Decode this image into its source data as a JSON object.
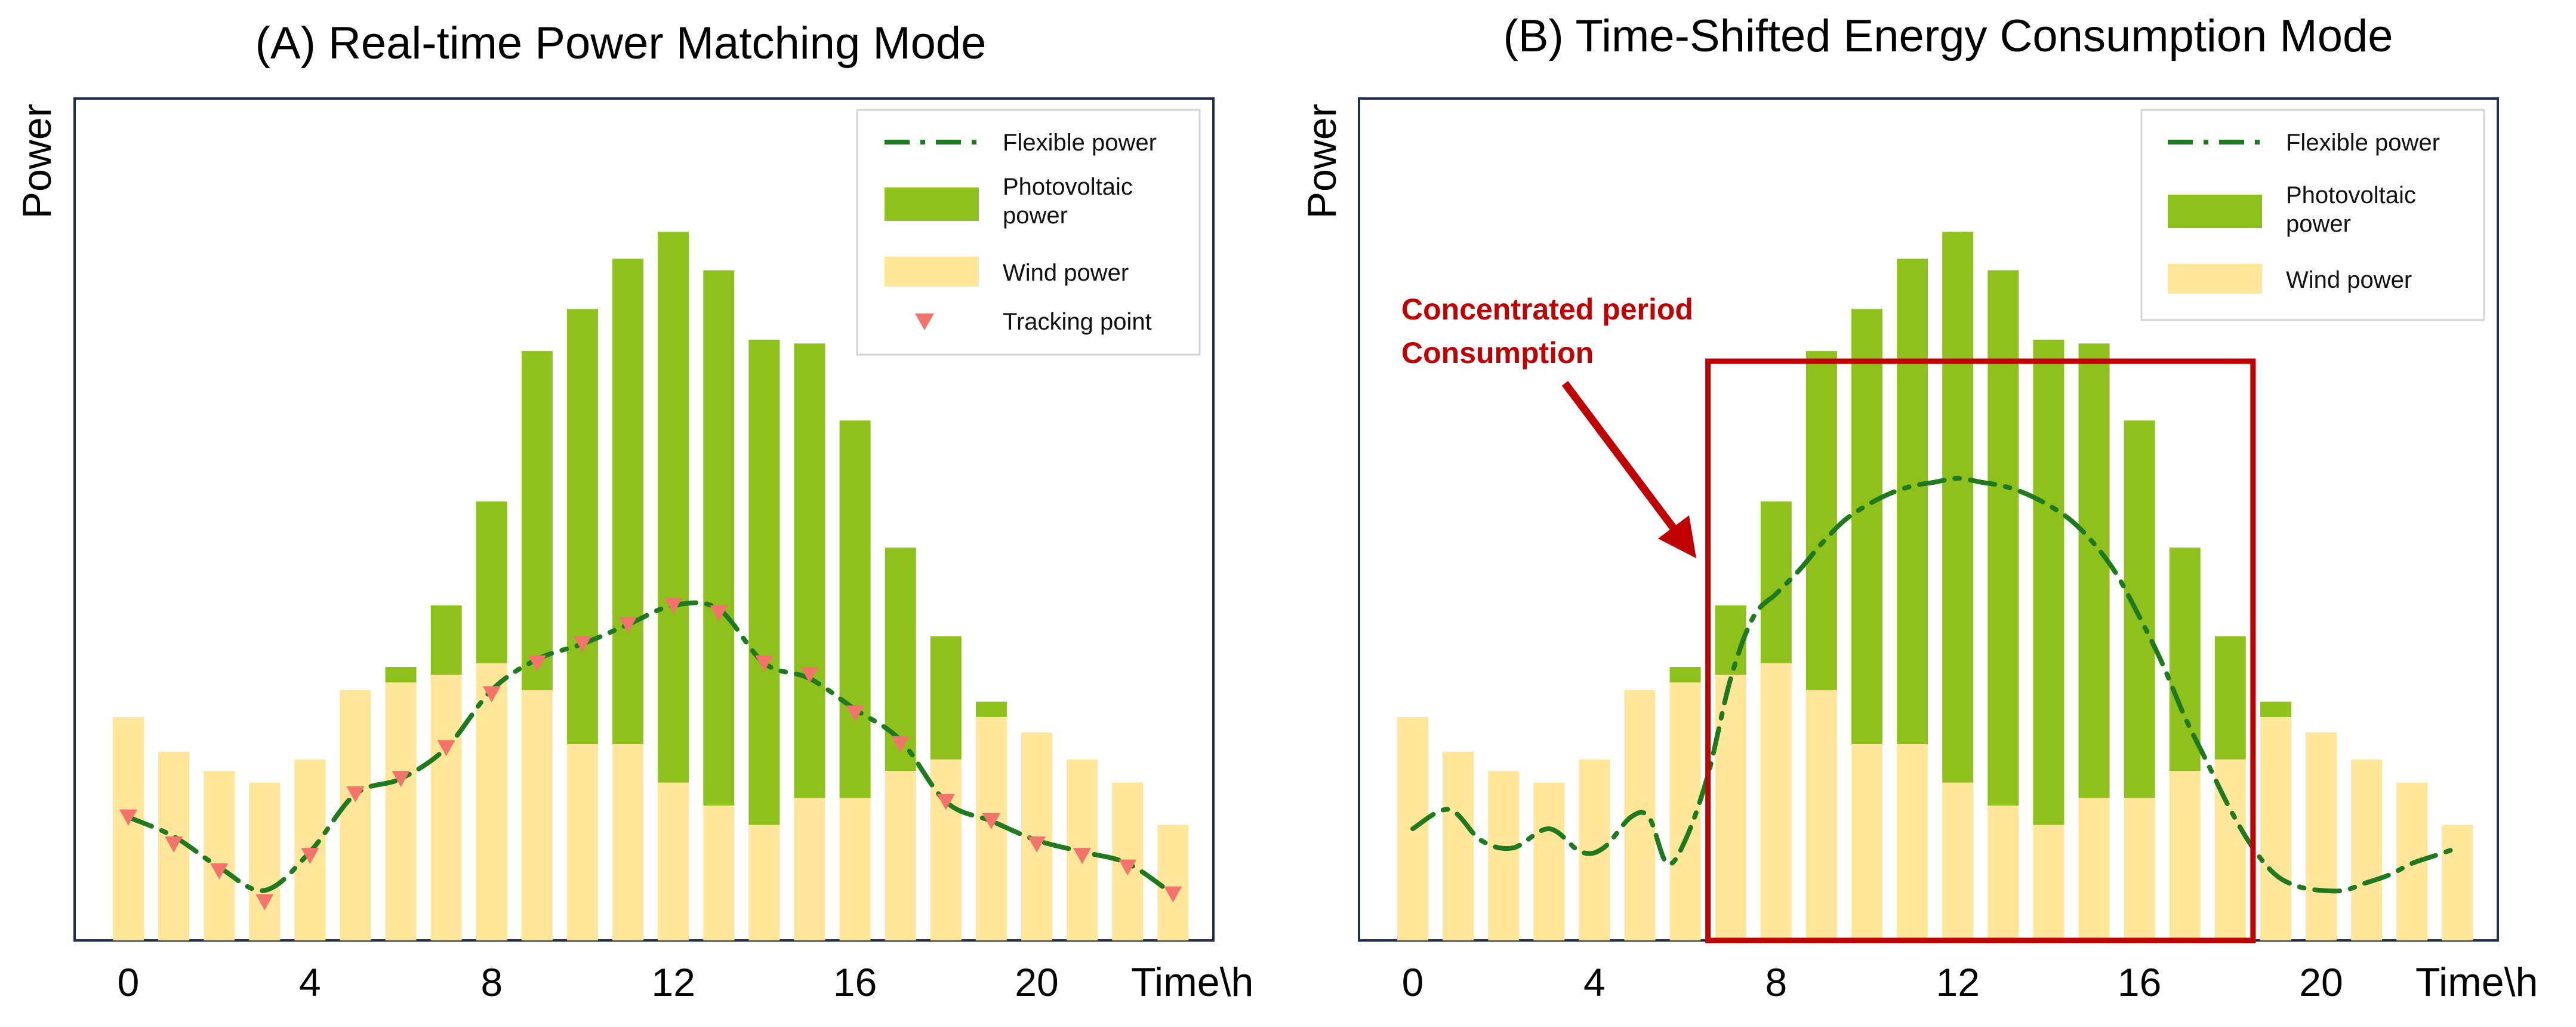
{
  "chart_data": [
    {
      "type": "bar",
      "title": "(A) Real-time Power Matching Mode",
      "xlabel": "Time\\h",
      "ylabel": "Power",
      "x_ticks": [
        "0",
        "4",
        "8",
        "12",
        "16",
        "20"
      ],
      "hours": [
        0,
        1,
        2,
        3,
        4,
        5,
        6,
        7,
        8,
        9,
        10,
        11,
        12,
        13,
        14,
        15,
        16,
        17,
        18,
        19,
        20,
        21,
        22,
        23
      ],
      "ylim": [
        0,
        100
      ],
      "stacked": true,
      "series": [
        {
          "name": "Wind power",
          "kind": "bar",
          "color": "#ffe699",
          "values": [
            29,
            24.5,
            22,
            20.5,
            23.5,
            32.5,
            33.5,
            34.5,
            36,
            32.5,
            25.5,
            25.5,
            20.5,
            17.5,
            15,
            18.5,
            18.5,
            22,
            23.5,
            29,
            27,
            23.5,
            20.5,
            15
          ]
        },
        {
          "name": "Photovoltaic power",
          "kind": "bar",
          "color": "#8fc11c",
          "values": [
            0,
            0,
            0,
            0,
            0,
            0,
            2,
            9,
            21,
            44,
            56.5,
            63,
            71.5,
            69.5,
            63,
            59,
            49,
            29,
            16,
            2,
            0,
            0,
            0,
            0
          ]
        },
        {
          "name": "Flexible power",
          "kind": "line",
          "color": "#1f7a1f",
          "dash": "dash-dot",
          "values": [
            16,
            13.5,
            9.5,
            6.5,
            11.5,
            19,
            21,
            25,
            32.5,
            36.5,
            38.5,
            41,
            43.5,
            43,
            36,
            34,
            30,
            26,
            18,
            15.5,
            13,
            11.5,
            10,
            6
          ]
        },
        {
          "name": "Tracking point",
          "kind": "marker",
          "color": "#f4736b",
          "values": [
            16,
            12.5,
            9,
            5,
            11,
            19,
            21,
            25,
            32,
            36,
            38.5,
            41,
            43.5,
            42.5,
            36,
            34.5,
            29.5,
            25.5,
            18,
            15.5,
            12.5,
            11,
            9.5,
            6
          ]
        }
      ],
      "legend": {
        "position": "top-right",
        "entries": [
          "Flexible power",
          "Photovoltaic power",
          "Wind power",
          "Tracking point"
        ]
      }
    },
    {
      "type": "bar",
      "title": "(B) Time-Shifted Energy Consumption Mode",
      "xlabel": "Time\\h",
      "ylabel": "Power",
      "x_ticks": [
        "0",
        "4",
        "8",
        "12",
        "16",
        "20"
      ],
      "hours": [
        0,
        1,
        2,
        3,
        4,
        5,
        6,
        7,
        8,
        9,
        10,
        11,
        12,
        13,
        14,
        15,
        16,
        17,
        18,
        19,
        20,
        21,
        22,
        23
      ],
      "ylim": [
        0,
        100
      ],
      "stacked": true,
      "series": [
        {
          "name": "Wind power",
          "kind": "bar",
          "color": "#ffe699",
          "values": [
            29,
            24.5,
            22,
            20.5,
            23.5,
            32.5,
            33.5,
            34.5,
            36,
            32.5,
            25.5,
            25.5,
            20.5,
            17.5,
            15,
            18.5,
            18.5,
            22,
            23.5,
            29,
            27,
            23.5,
            20.5,
            15
          ]
        },
        {
          "name": "Photovoltaic power",
          "kind": "bar",
          "color": "#8fc11c",
          "values": [
            0,
            0,
            0,
            0,
            0,
            0,
            2,
            9,
            21,
            44,
            56.5,
            63,
            71.5,
            69.5,
            63,
            59,
            49,
            29,
            16,
            2,
            0,
            0,
            0,
            0
          ]
        },
        {
          "name": "Flexible power",
          "kind": "line",
          "color": "#1f7a1f",
          "dash": "dash-dot",
          "x": [
            0,
            0.8,
            1.5,
            2.2,
            3,
            3.7,
            4.2,
            4.8,
            5.2,
            5.6,
            6,
            6.5,
            7,
            7.5,
            8,
            8.5,
            9,
            9.5,
            10,
            10.5,
            11,
            11.5,
            12,
            12.5,
            13,
            13.5,
            14,
            14.5,
            15,
            15.5,
            16,
            16.5,
            17,
            17.5,
            18,
            18.5,
            19,
            19.5,
            20,
            20.5,
            21,
            21.5,
            22,
            22.5,
            23
          ],
          "values": [
            14.5,
            17,
            13,
            12,
            14.5,
            11.5,
            12,
            16,
            16,
            10,
            13,
            21.5,
            34,
            42,
            45,
            48,
            51.5,
            54.5,
            56.5,
            58,
            59,
            59.5,
            60,
            59.5,
            59,
            58,
            56.5,
            54.5,
            51.5,
            47.5,
            42,
            36,
            29,
            23,
            17,
            12,
            8.5,
            7,
            6.5,
            6.5,
            7.5,
            8.5,
            10,
            11,
            12
          ]
        }
      ],
      "annotation": {
        "line1": "Concentrated period",
        "line2": "Consumption",
        "box_hours": [
          6.5,
          18.5
        ],
        "color": "#c00000"
      },
      "legend": {
        "position": "top-right",
        "entries": [
          "Flexible power",
          "Photovoltaic power",
          "Wind power"
        ]
      }
    }
  ]
}
